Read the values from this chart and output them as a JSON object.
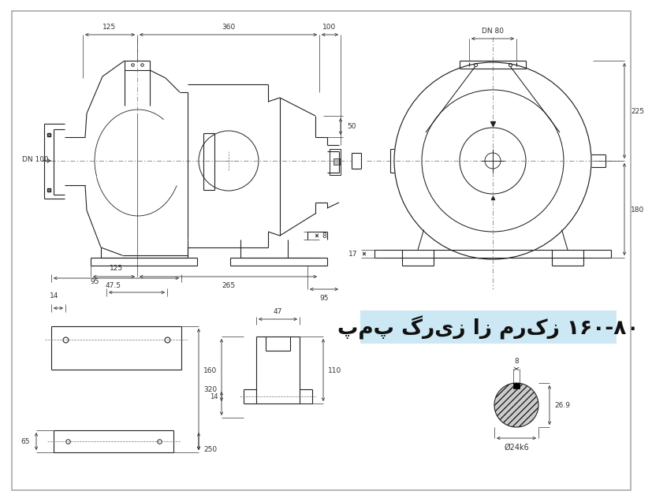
{
  "title": "پمپ گریز از مرکز ۱۶۰-۸۰",
  "title_bg": "#cce8f4",
  "title_color": "#111111",
  "bg_color": "#ffffff",
  "lc": "#222222",
  "dc": "#333333"
}
